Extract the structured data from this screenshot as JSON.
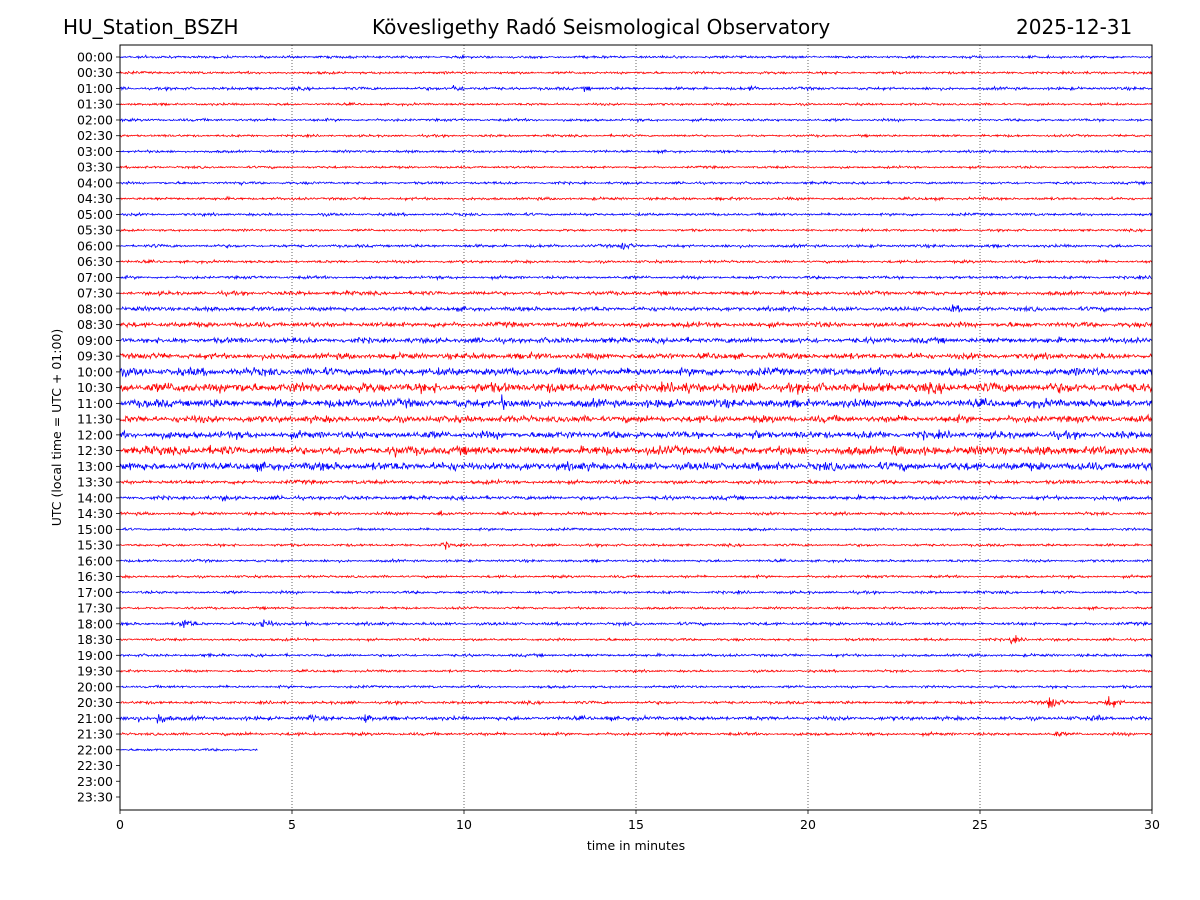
{
  "chart_data": {
    "type": "line",
    "title_left": "HU_Station_BSZH",
    "title": "Kövesligethy Radó Seismological Observatory",
    "title_right": "2025-12-31",
    "xlabel": "time in minutes",
    "ylabel": "UTC (local time = UTC + 01:00)",
    "xlim": [
      0,
      30
    ],
    "xticks": [
      "0",
      "5",
      "10",
      "15",
      "20",
      "25",
      "30"
    ],
    "grid": "vertical dotted lines at 5-minute ticks",
    "colors": [
      "#0000ff",
      "#ff0000"
    ],
    "rows": [
      "00:00",
      "00:30",
      "01:00",
      "01:30",
      "02:00",
      "02:30",
      "03:00",
      "03:30",
      "04:00",
      "04:30",
      "05:00",
      "05:30",
      "06:00",
      "06:30",
      "07:00",
      "07:30",
      "08:00",
      "08:30",
      "09:00",
      "09:30",
      "10:00",
      "10:30",
      "11:00",
      "11:30",
      "12:00",
      "12:30",
      "13:00",
      "13:30",
      "14:00",
      "14:30",
      "15:00",
      "15:30",
      "16:00",
      "16:30",
      "17:00",
      "17:30",
      "18:00",
      "18:30",
      "19:00",
      "19:30",
      "20:00",
      "20:30",
      "21:00",
      "21:30",
      "22:00",
      "22:30",
      "23:00",
      "23:30"
    ],
    "noise_level": [
      1.3,
      1.3,
      1.5,
      1.2,
      1.3,
      1.2,
      1.3,
      1.2,
      1.3,
      1.4,
      1.4,
      1.2,
      1.5,
      1.4,
      1.5,
      2,
      2.2,
      2.6,
      2.8,
      3,
      4,
      5,
      4.2,
      3.5,
      3.6,
      4.5,
      4.2,
      2,
      2,
      1.5,
      1.3,
      1.3,
      1.3,
      1.3,
      1.4,
      1.2,
      1.6,
      1.3,
      1.4,
      1.2,
      1.3,
      1.5,
      2,
      1.5,
      1.2,
      0,
      0,
      0
    ],
    "data_end_minute": {
      "22:00": 4.0
    },
    "events": [
      {
        "row": "01:00",
        "minute": 9.7,
        "amplitude": 6
      },
      {
        "row": "01:00",
        "minute": 13.5,
        "amplitude": 4
      },
      {
        "row": "01:00",
        "minute": 18.3,
        "amplitude": 4
      },
      {
        "row": "04:00",
        "minute": 3.5,
        "amplitude": 3
      },
      {
        "row": "06:00",
        "minute": 1.0,
        "amplitude": 3
      },
      {
        "row": "06:00",
        "minute": 14.6,
        "amplitude": 7
      },
      {
        "row": "08:00",
        "minute": 24.2,
        "amplitude": 7
      },
      {
        "row": "10:30",
        "minute": 16.5,
        "amplitude": 10
      },
      {
        "row": "10:30",
        "minute": 18.5,
        "amplitude": 7
      },
      {
        "row": "11:00",
        "minute": 11.1,
        "amplitude": 10
      },
      {
        "row": "11:00",
        "minute": 4.5,
        "amplitude": 6
      },
      {
        "row": "11:00",
        "minute": 7.3,
        "amplitude": 6
      },
      {
        "row": "12:00",
        "minute": 18.5,
        "amplitude": 8
      },
      {
        "row": "12:00",
        "minute": 23.3,
        "amplitude": 7
      },
      {
        "row": "12:30",
        "minute": 2,
        "amplitude": 7
      },
      {
        "row": "12:30",
        "minute": 8,
        "amplitude": 8
      },
      {
        "row": "12:30",
        "minute": 22.5,
        "amplitude": 9
      },
      {
        "row": "13:00",
        "minute": 16.5,
        "amplitude": 6
      },
      {
        "row": "13:00",
        "minute": 0.3,
        "amplitude": 6
      },
      {
        "row": "14:00",
        "minute": 3,
        "amplitude": 5
      },
      {
        "row": "14:00",
        "minute": 29,
        "amplitude": 5
      },
      {
        "row": "14:30",
        "minute": 9.3,
        "amplitude": 5
      },
      {
        "row": "15:30",
        "minute": 9.4,
        "amplitude": 6
      },
      {
        "row": "18:00",
        "minute": 1.8,
        "amplitude": 9
      },
      {
        "row": "18:00",
        "minute": 4.1,
        "amplitude": 9
      },
      {
        "row": "18:00",
        "minute": 5.4,
        "amplitude": 5
      },
      {
        "row": "18:30",
        "minute": 25.9,
        "amplitude": 6
      },
      {
        "row": "19:00",
        "minute": 2.5,
        "amplitude": 3
      },
      {
        "row": "20:30",
        "minute": 27,
        "amplitude": 11
      },
      {
        "row": "20:30",
        "minute": 28.7,
        "amplitude": 10
      },
      {
        "row": "21:00",
        "minute": 0.4,
        "amplitude": 6
      },
      {
        "row": "21:00",
        "minute": 1.1,
        "amplitude": 10
      },
      {
        "row": "21:00",
        "minute": 5.5,
        "amplitude": 7
      },
      {
        "row": "21:00",
        "minute": 7.1,
        "amplitude": 7
      },
      {
        "row": "21:00",
        "minute": 14.1,
        "amplitude": 5
      },
      {
        "row": "21:00",
        "minute": 28.3,
        "amplitude": 6
      },
      {
        "row": "21:30",
        "minute": 3.7,
        "amplitude": 4
      },
      {
        "row": "21:30",
        "minute": 27.2,
        "amplitude": 5
      }
    ]
  }
}
